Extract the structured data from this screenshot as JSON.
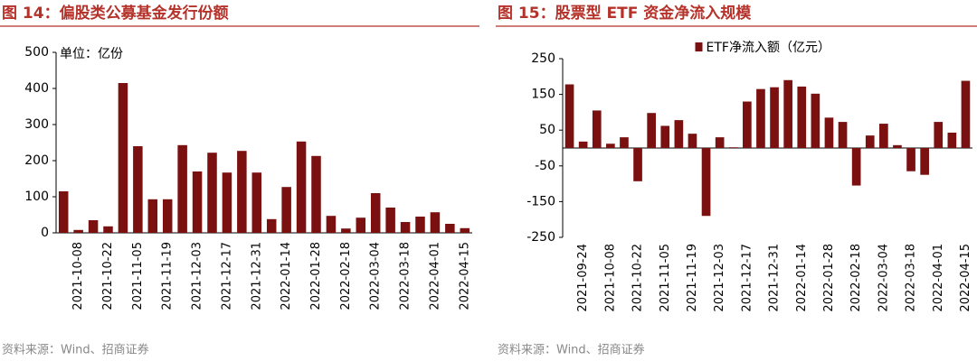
{
  "chart_data": [
    {
      "type": "bar",
      "title": "图 14：偏股类公募基金发行份额",
      "annotation": "单位：亿份",
      "source": "资料来源：Wind、招商证券",
      "categories": [
        null,
        "2021-10-08",
        null,
        "2021-10-22",
        null,
        "2021-11-05",
        null,
        "2021-11-19",
        null,
        "2021-12-03",
        null,
        "2021-12-17",
        null,
        "2021-12-31",
        null,
        "2022-01-14",
        null,
        "2022-01-28",
        null,
        "2022-02-18",
        null,
        "2022-03-04",
        null,
        "2022-03-18",
        null,
        "2022-04-01",
        null,
        "2022-04-15"
      ],
      "values": [
        115,
        8,
        35,
        18,
        415,
        240,
        93,
        93,
        243,
        170,
        222,
        167,
        227,
        167,
        38,
        127,
        253,
        213,
        47,
        12,
        42,
        110,
        70,
        30,
        45,
        57,
        25,
        13
      ],
      "color": "#7b1010",
      "ylim": [
        0,
        500
      ],
      "yticks": [
        0,
        100,
        200,
        300,
        400,
        500
      ]
    },
    {
      "type": "bar",
      "title": "图 15：股票型 ETF 资金净流入规模",
      "source": "资料来源：Wind、招商证券",
      "categories": [
        null,
        "2021-09-24",
        null,
        "2021-10-08",
        null,
        "2021-10-22",
        null,
        "2021-11-05",
        null,
        "2021-11-19",
        null,
        "2021-12-03",
        null,
        "2021-12-17",
        null,
        "2021-12-31",
        null,
        "2022-01-14",
        null,
        "2022-01-28",
        null,
        "2022-02-18",
        null,
        "2022-03-04",
        null,
        "2022-03-18",
        null,
        "2022-04-01",
        null,
        "2022-04-15"
      ],
      "series": [
        {
          "name": "ETF净流入额（亿元）",
          "color": "#7b1010",
          "values": [
            178,
            18,
            105,
            12,
            30,
            -93,
            98,
            62,
            78,
            40,
            -190,
            30,
            2,
            130,
            165,
            170,
            190,
            172,
            152,
            85,
            73,
            -105,
            35,
            68,
            8,
            -65,
            -75,
            73,
            43,
            188
          ]
        }
      ],
      "ylim": [
        -250,
        250
      ],
      "yticks": [
        -250,
        -150,
        -50,
        50,
        150,
        250
      ]
    }
  ]
}
